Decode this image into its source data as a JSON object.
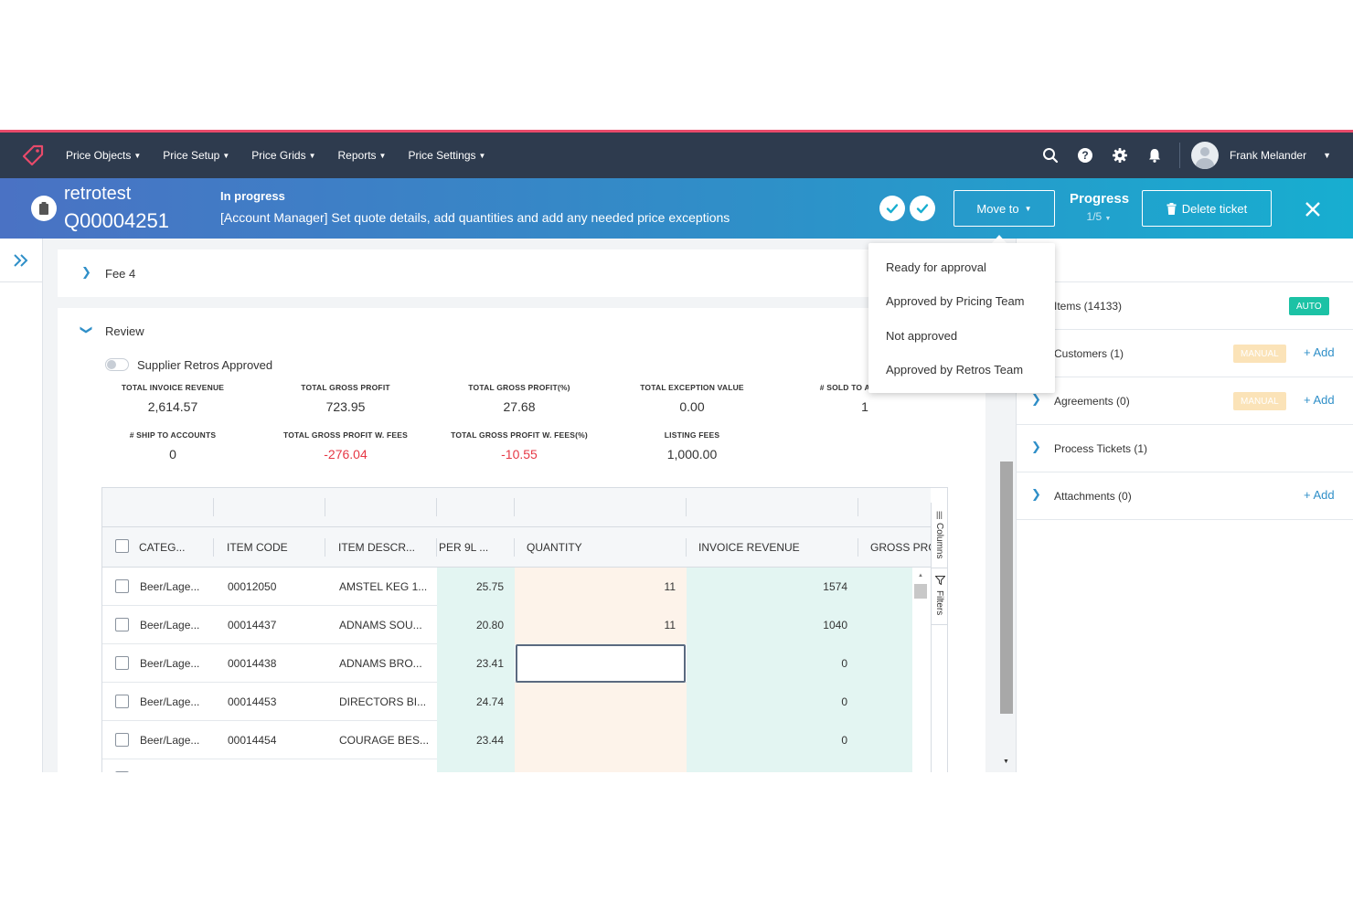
{
  "nav": {
    "items": [
      {
        "label": "Price Objects"
      },
      {
        "label": "Price Setup"
      },
      {
        "label": "Price Grids"
      },
      {
        "label": "Reports"
      },
      {
        "label": "Price Settings"
      }
    ],
    "user_name": "Frank Melander"
  },
  "ticket": {
    "name": "retrotest",
    "id": "Q00004251",
    "status": "In progress",
    "description": "[Account Manager] Set quote details, add quantities and add any needed price exceptions",
    "move_to_label": "Move to",
    "progress_label": "Progress",
    "progress_value": "1/5",
    "delete_label": "Delete ticket"
  },
  "move_to_menu": {
    "options": [
      {
        "label": "Ready for approval"
      },
      {
        "label": "Approved by Pricing Team"
      },
      {
        "label": "Not approved"
      },
      {
        "label": "Approved by Retros Team"
      }
    ]
  },
  "sections": {
    "fee4": "Fee 4",
    "review": "Review",
    "toggle_label": "Supplier Retros Approved"
  },
  "kpis": [
    {
      "label": "TOTAL INVOICE REVENUE",
      "value": "2,614.57"
    },
    {
      "label": "TOTAL GROSS PROFIT",
      "value": "723.95"
    },
    {
      "label": "TOTAL GROSS PROFIT(%)",
      "value": "27.68"
    },
    {
      "label": "TOTAL EXCEPTION VALUE",
      "value": "0.00"
    },
    {
      "label": "# SOLD TO ACCOUNTS",
      "value": "1"
    },
    {
      "label": "# SHIP TO ACCOUNTS",
      "value": "0"
    },
    {
      "label": "TOTAL GROSS PROFIT W. FEES",
      "value": "-276.04"
    },
    {
      "label": "TOTAL GROSS PROFIT W. FEES(%)",
      "value": "-10.55"
    },
    {
      "label": "LISTING FEES",
      "value": "1,000.00"
    }
  ],
  "grid": {
    "columns": [
      "CATEG...",
      "ITEM CODE",
      "ITEM DESCR...",
      "PER 9L ...",
      "QUANTITY",
      "INVOICE REVENUE",
      "GROSS PRO"
    ],
    "rows": [
      {
        "category": "Beer/Lage...",
        "code": "00012050",
        "desc": "AMSTEL KEG 1...",
        "per9l": "25.75",
        "qty": "11",
        "revenue": "1574"
      },
      {
        "category": "Beer/Lage...",
        "code": "00014437",
        "desc": "ADNAMS SOU...",
        "per9l": "20.80",
        "qty": "11",
        "revenue": "1040"
      },
      {
        "category": "Beer/Lage...",
        "code": "00014438",
        "desc": "ADNAMS BRO...",
        "per9l": "23.41",
        "qty": "",
        "revenue": "0"
      },
      {
        "category": "Beer/Lage...",
        "code": "00014453",
        "desc": "DIRECTORS BI...",
        "per9l": "24.74",
        "qty": "",
        "revenue": "0"
      },
      {
        "category": "Beer/Lage...",
        "code": "00014454",
        "desc": "COURAGE BES...",
        "per9l": "23.44",
        "qty": "",
        "revenue": "0"
      }
    ],
    "tools": {
      "columns": "Columns",
      "filters": "Filters"
    }
  },
  "right_panel": {
    "items": [
      {
        "label": "Items (14133)",
        "badge": "AUTO"
      },
      {
        "label": "Customers (1)",
        "badge": "MANUAL",
        "add": "+ Add"
      },
      {
        "label": "Agreements (0)",
        "badge": "MANUAL",
        "add": "+ Add"
      },
      {
        "label": "Process Tickets (1)"
      },
      {
        "label": "Attachments (0)",
        "add": "+ Add"
      }
    ]
  },
  "colors": {
    "nav_bg": "#2e3b4e",
    "accent": "#2f8fc8",
    "negative": "#e63946",
    "auto_badge": "#1cc2a5",
    "manual_badge": "#fbe3b8",
    "col_per9l_bg": "#e3f5f2",
    "col_qty_bg": "#fdf3ea"
  }
}
